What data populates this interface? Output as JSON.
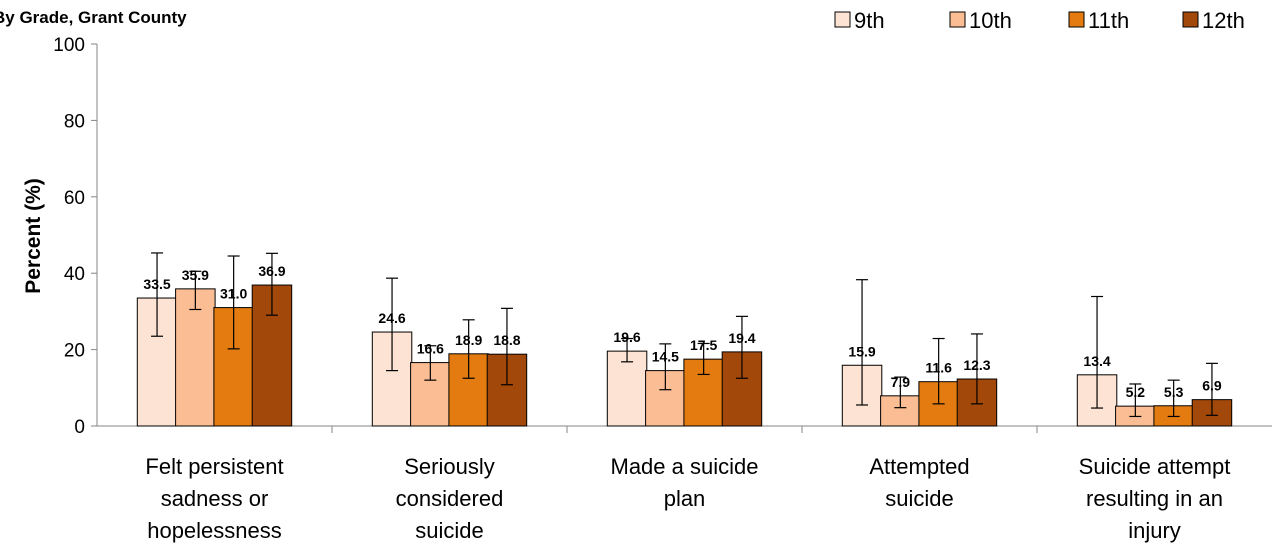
{
  "chart_data": {
    "type": "bar",
    "title": "By Grade, Grant County",
    "ylabel": "Percent (%)",
    "xlabel": "",
    "ylim": [
      0,
      100
    ],
    "yticks": [
      0,
      20,
      40,
      60,
      80,
      100
    ],
    "grid": false,
    "legend_position": "top-right",
    "categories": [
      [
        "Felt persistent",
        "sadness or",
        "hopelessness"
      ],
      [
        "Seriously",
        "considered",
        "suicide"
      ],
      [
        "Made a suicide",
        "plan"
      ],
      [
        "Attempted",
        "suicide"
      ],
      [
        "Suicide attempt",
        "resulting in an",
        "injury"
      ]
    ],
    "series": [
      {
        "name": "9th",
        "color": "#fde3d3",
        "values": [
          33.5,
          24.6,
          19.6,
          15.9,
          13.4
        ],
        "labels": [
          "33.5",
          "24.6",
          "19.6",
          "15.9",
          "13.4"
        ],
        "err_low": [
          23.5,
          14.5,
          16.8,
          5.5,
          4.7
        ],
        "err_high": [
          45.3,
          38.7,
          22.9,
          38.3,
          33.9
        ]
      },
      {
        "name": "10th",
        "color": "#fbbe94",
        "values": [
          35.9,
          16.6,
          14.5,
          7.9,
          5.2
        ],
        "labels": [
          "35.9",
          "16.6",
          "14.5",
          "7.9",
          "5.2"
        ],
        "err_low": [
          30.5,
          12.0,
          9.5,
          4.8,
          2.5
        ],
        "err_high": [
          40.5,
          21.0,
          21.5,
          12.8,
          11.0
        ]
      },
      {
        "name": "11th",
        "color": "#e37b10",
        "values": [
          31.0,
          18.9,
          17.5,
          11.6,
          5.3
        ],
        "labels": [
          "31.0",
          "18.9",
          "17.5",
          "11.6",
          "5.3"
        ],
        "err_low": [
          20.2,
          12.5,
          13.5,
          5.8,
          2.5
        ],
        "err_high": [
          44.5,
          27.8,
          21.6,
          22.9,
          12.0
        ]
      },
      {
        "name": "12th",
        "color": "#a2480a",
        "values": [
          36.9,
          18.8,
          19.4,
          12.3,
          6.9
        ],
        "labels": [
          "36.9",
          "18.8",
          "19.4",
          "12.3",
          "6.9"
        ],
        "err_low": [
          29.0,
          10.8,
          12.5,
          5.8,
          2.8
        ],
        "err_high": [
          45.2,
          30.8,
          28.7,
          24.1,
          16.4
        ]
      }
    ]
  }
}
